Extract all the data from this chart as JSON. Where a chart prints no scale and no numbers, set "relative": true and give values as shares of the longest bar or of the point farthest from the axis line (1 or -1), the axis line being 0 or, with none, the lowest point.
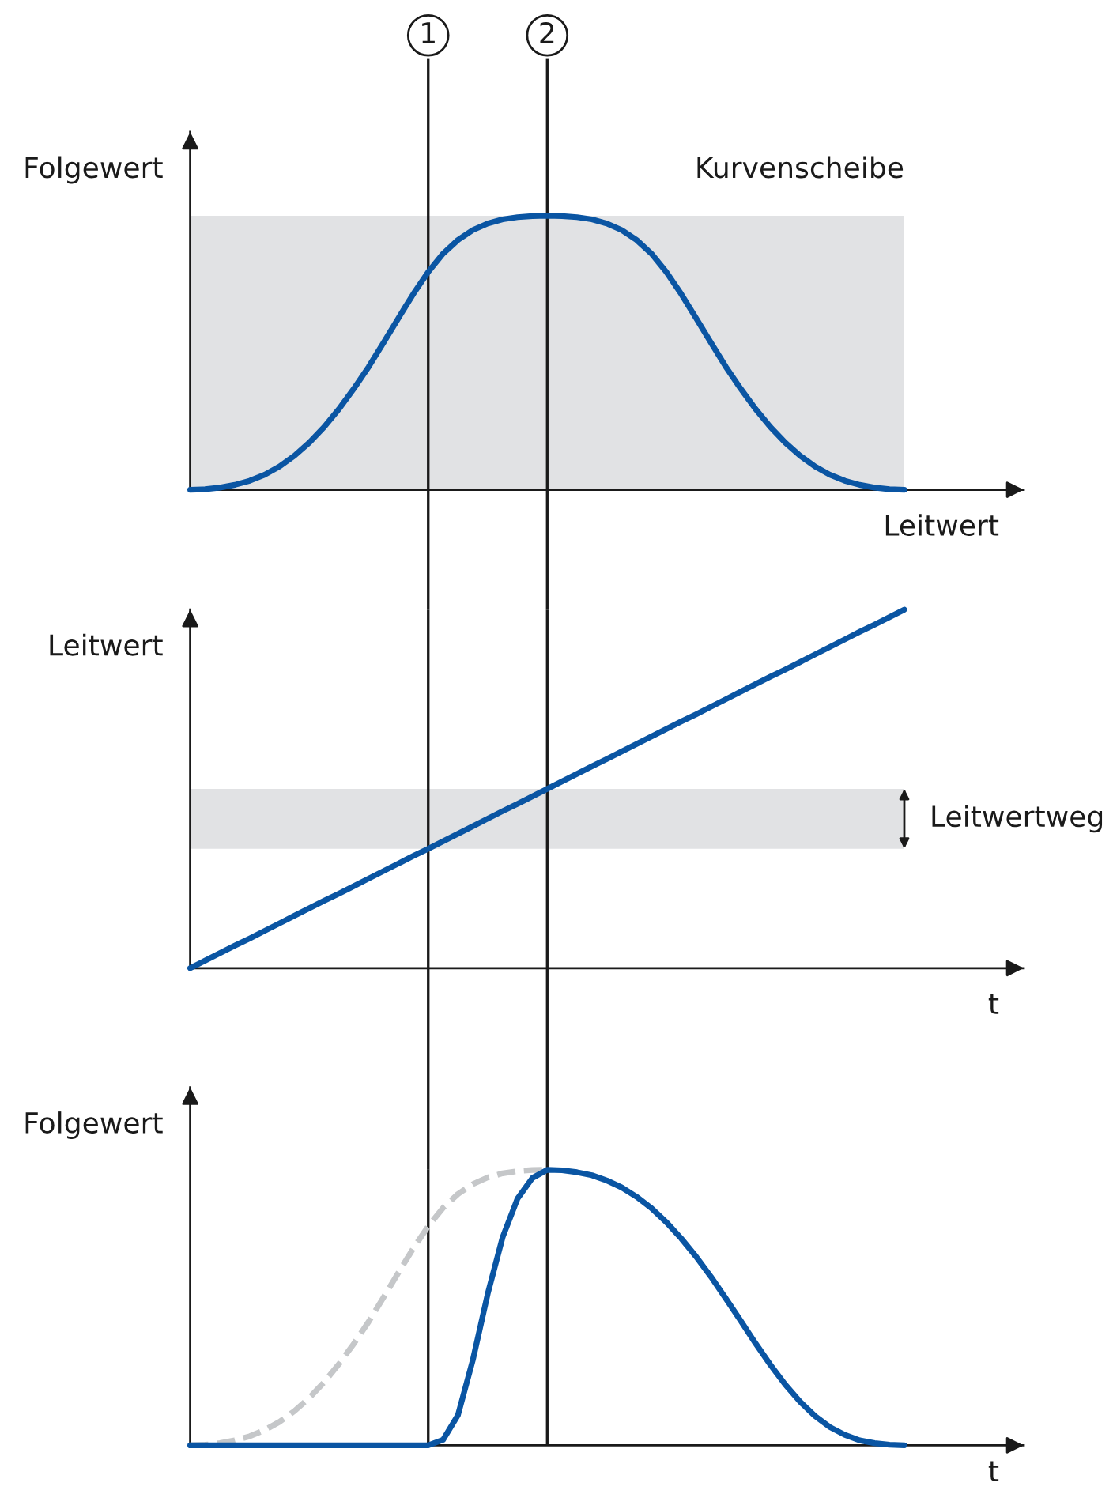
{
  "chart_data": [
    {
      "type": "line",
      "relative": true,
      "title": "Kurvenscheibe",
      "ylabel": "Folgewert",
      "xlabel": "Leitwert",
      "categories": [
        null,
        null,
        null,
        null,
        null,
        null,
        null,
        null,
        null,
        null,
        null,
        null,
        null,
        null,
        null,
        null,
        "1",
        null,
        null,
        null,
        null,
        null,
        null,
        null,
        "2",
        null,
        null,
        null,
        null,
        null,
        null,
        null,
        null,
        null,
        null,
        null,
        null,
        null,
        null,
        null,
        null,
        null,
        null,
        null,
        null,
        null,
        null,
        null,
        null
      ],
      "series": [
        {
          "color": "#0a55a3",
          "values": [
            0,
            0.002,
            0.008,
            0.018,
            0.033,
            0.055,
            0.085,
            0.124,
            0.172,
            0.229,
            0.295,
            0.369,
            0.449,
            0.537,
            0.627,
            0.715,
            0.795,
            0.862,
            0.912,
            0.948,
            0.972,
            0.987,
            0.995,
            0.999,
            1,
            0.999,
            0.995,
            0.987,
            0.972,
            0.948,
            0.912,
            0.862,
            0.795,
            0.715,
            0.627,
            0.537,
            0.449,
            0.369,
            0.295,
            0.229,
            0.172,
            0.124,
            0.085,
            0.055,
            0.033,
            0.018,
            0.008,
            0.002,
            0
          ]
        }
      ],
      "ref_lines": [
        {
          "axis": "x",
          "value": "1"
        },
        {
          "axis": "x",
          "value": "2"
        }
      ]
    },
    {
      "type": "line",
      "relative": true,
      "ylabel": "Leitwert",
      "xlabel": "t",
      "tick_labels": false,
      "categories": [
        null,
        null,
        null,
        null,
        null,
        null,
        null,
        null,
        null,
        null,
        null,
        null,
        null,
        null,
        null,
        null,
        "1",
        null,
        null,
        null,
        null,
        null,
        null,
        null,
        "2",
        null,
        null,
        null,
        null,
        null,
        null,
        null,
        null,
        null,
        null,
        null,
        null,
        null,
        null,
        null,
        null,
        null,
        null,
        null,
        null,
        null,
        null,
        null,
        null
      ],
      "series": [
        {
          "color": "#0a55a3",
          "values": [
            0,
            0.021,
            0.042,
            0.063,
            0.083,
            0.104,
            0.125,
            0.146,
            0.167,
            0.188,
            0.208,
            0.229,
            0.25,
            0.271,
            0.292,
            0.313,
            0.333,
            0.354,
            0.375,
            0.396,
            0.417,
            0.438,
            0.458,
            0.479,
            0.5,
            0.521,
            0.542,
            0.563,
            0.583,
            0.604,
            0.625,
            0.646,
            0.667,
            0.688,
            0.708,
            0.729,
            0.75,
            0.771,
            0.792,
            0.813,
            0.833,
            0.854,
            0.875,
            0.896,
            0.917,
            0.938,
            0.958,
            0.979,
            1
          ]
        }
      ],
      "bands": [
        {
          "axis": "y",
          "from": 0.333,
          "to": 0.5,
          "label": "Leitwertweg",
          "color": "#e1e2e4"
        }
      ],
      "ref_lines": [
        {
          "axis": "x",
          "value": "1"
        },
        {
          "axis": "x",
          "value": "2"
        }
      ]
    },
    {
      "type": "line",
      "relative": true,
      "ylabel": "Folgewert",
      "xlabel": "t",
      "tick_labels": false,
      "categories": [
        null,
        null,
        null,
        null,
        null,
        null,
        null,
        null,
        null,
        null,
        null,
        null,
        null,
        null,
        null,
        null,
        "1",
        null,
        null,
        null,
        null,
        null,
        null,
        null,
        "2",
        null,
        null,
        null,
        null,
        null,
        null,
        null,
        null,
        null,
        null,
        null,
        null,
        null,
        null,
        null,
        null,
        null,
        null,
        null,
        null,
        null,
        null,
        null,
        null
      ],
      "series": [
        {
          "color": "#c5c7c9",
          "line_style": "dashed",
          "values": [
            0,
            0.002,
            0.008,
            0.018,
            0.033,
            0.055,
            0.085,
            0.124,
            0.172,
            0.229,
            0.295,
            0.369,
            0.449,
            0.537,
            0.627,
            0.715,
            0.795,
            0.862,
            0.912,
            0.948,
            0.972,
            0.987,
            0.995,
            0.999,
            1,
            null,
            null,
            null,
            null,
            null,
            null,
            null,
            null,
            null,
            null,
            null,
            null,
            null,
            null,
            null,
            null,
            null,
            null,
            null,
            null,
            null,
            null,
            null,
            null
          ]
        },
        {
          "color": "#0a55a3",
          "values": [
            0,
            0,
            0,
            0,
            0,
            0,
            0,
            0,
            0,
            0,
            0,
            0,
            0,
            0,
            0,
            0,
            0,
            0.02,
            0.11,
            0.31,
            0.55,
            0.755,
            0.895,
            0.97,
            1,
            0.998,
            0.991,
            0.98,
            0.961,
            0.936,
            0.902,
            0.861,
            0.81,
            0.751,
            0.685,
            0.612,
            0.533,
            0.452,
            0.37,
            0.292,
            0.22,
            0.158,
            0.106,
            0.066,
            0.038,
            0.018,
            0.008,
            0.002,
            0
          ]
        }
      ],
      "ref_lines": [
        {
          "axis": "x",
          "value": "1"
        },
        {
          "axis": "x",
          "value": "2"
        }
      ]
    }
  ]
}
